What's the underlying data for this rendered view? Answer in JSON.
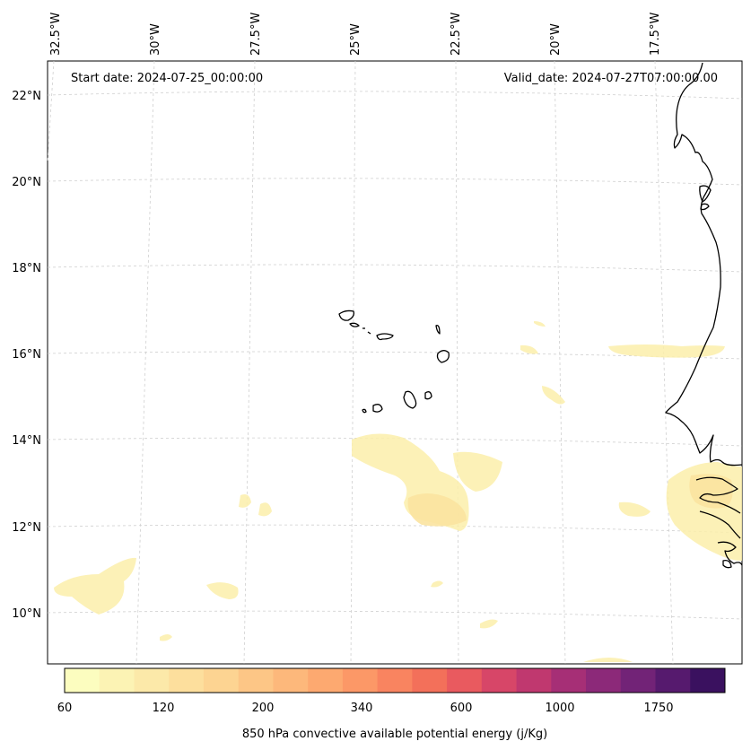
{
  "header": {
    "start_date": "Start date: 2024-07-25_00:00:00",
    "valid_date": "Valid_date: 2024-07-27T07:00:00.00"
  },
  "map": {
    "lon_labels": [
      "32.5°W",
      "30°W",
      "27.5°W",
      "25°W",
      "22.5°W",
      "20°W",
      "17.5°W"
    ],
    "lat_labels": [
      "22°N",
      "20°N",
      "18°N",
      "16°N",
      "14°N",
      "12°N",
      "10°N"
    ]
  },
  "colorbar": {
    "label": "850 hPa convective available potential energy (j/Kg)",
    "ticks": [
      "60",
      "120",
      "200",
      "340",
      "600",
      "1000",
      "1750"
    ],
    "colors": [
      "#fcfdbf",
      "#fcf3b4",
      "#fce9a9",
      "#fddf9d",
      "#fdd492",
      "#fdc686",
      "#fdb87b",
      "#fda970",
      "#fc9867",
      "#f98460",
      "#f3705a",
      "#e95a5f",
      "#d74668",
      "#c0386f",
      "#a62f76",
      "#8c2979",
      "#722377",
      "#561a6e",
      "#3a115f"
    ]
  }
}
